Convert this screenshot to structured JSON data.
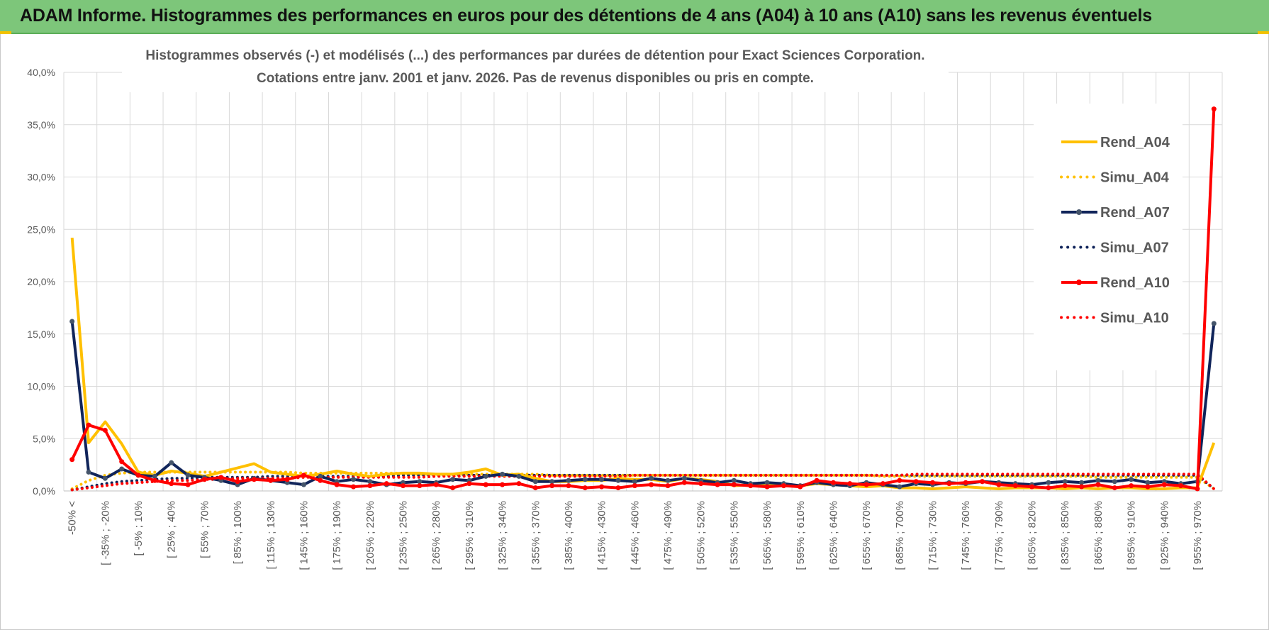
{
  "banner": {
    "title": "ADAM Informe. Histogrammes des performances en euros pour des détentions de 4 ans (A04) à 10 ans (A10) sans les revenus éventuels",
    "color": "#7dc67a"
  },
  "chart_data": {
    "type": "line",
    "title_line1": "Histogrammes observés (-) et modélisés (...) des performances par durées de détention pour Exact Sciences Corporation.",
    "title_line2": "Cotations entre janv. 2001 et janv. 2026. Pas de revenus disponibles ou pris en compte.",
    "xlabel": "",
    "ylabel": "",
    "ylim": [
      0,
      40
    ],
    "yticks": [
      "0,0%",
      "5,0%",
      "10,0%",
      "15,0%",
      "20,0%",
      "25,0%",
      "30,0%",
      "35,0%",
      "40,0%"
    ],
    "grid": true,
    "legend_position": "right",
    "x_tick_labels": [
      "-50% <",
      "[ -35% ; -20%",
      "[ -5% ; 10%",
      "[ 25% ; 40%",
      "[ 55% ; 70%",
      "[ 85% ; 100%",
      "[ 115% ; 130%",
      "[ 145% ; 160%",
      "[ 175% ; 190%",
      "[ 205% ; 220%",
      "[ 235% ; 250%",
      "[ 265% ; 280%",
      "[ 295% ; 310%",
      "[ 325% ; 340%",
      "[ 355% ; 370%",
      "[ 385% ; 400%",
      "[ 415% ; 430%",
      "[ 445% ; 460%",
      "[ 475% ; 490%",
      "[ 505% ; 520%",
      "[ 535% ; 550%",
      "[ 565% ; 580%",
      "[ 595% ; 610%",
      "[ 625% ; 640%",
      "[ 655% ; 670%",
      "[ 685% ; 700%",
      "[ 715% ; 730%",
      "[ 745% ; 760%",
      "[ 775% ; 790%",
      "[ 805% ; 820%",
      "[ 835% ; 850%",
      "[ 865% ; 880%",
      "[ 895% ; 910%",
      "[ 925% ; 940%",
      "[ 955% ; 970%"
    ],
    "n_points": 70,
    "series": [
      {
        "name": "Rend_A04",
        "style": "solid",
        "color": "#ffc000",
        "markers": false,
        "values": [
          24.2,
          4.6,
          6.6,
          4.5,
          1.8,
          1.5,
          1.9,
          1.7,
          1.4,
          1.8,
          2.2,
          2.6,
          1.8,
          1.6,
          1.4,
          1.6,
          1.9,
          1.6,
          1.4,
          1.6,
          1.7,
          1.7,
          1.6,
          1.6,
          1.8,
          2.1,
          1.5,
          1.6,
          1.2,
          0.9,
          0.9,
          1.0,
          1.0,
          1.2,
          1.1,
          1.1,
          0.9,
          1.2,
          1.1,
          0.9,
          0.5,
          0.6,
          0.7,
          0.6,
          0.5,
          0.7,
          0.6,
          0.5,
          0.4,
          0.5,
          0.3,
          0.3,
          0.2,
          0.3,
          0.4,
          0.3,
          0.2,
          0.3,
          0.3,
          0.3,
          0.2,
          0.3,
          0.2,
          0.3,
          0.3,
          0.2,
          0.2,
          0.3,
          0.3,
          4.6
        ]
      },
      {
        "name": "Simu_A04",
        "style": "dotted",
        "color": "#ffc000",
        "markers": false,
        "values": [
          0.2,
          1.0,
          1.5,
          1.7,
          1.8,
          1.8,
          1.8,
          1.8,
          1.8,
          1.8,
          1.8,
          1.8,
          1.8,
          1.8,
          1.7,
          1.7,
          1.7,
          1.7,
          1.7,
          1.7,
          1.7,
          1.6,
          1.6,
          1.6,
          1.6,
          1.6,
          1.6,
          1.6,
          1.6,
          1.5,
          1.5,
          1.5,
          1.5,
          1.5,
          1.5,
          1.5,
          1.5,
          1.5,
          1.5,
          1.5,
          1.5,
          1.5,
          1.5,
          1.5,
          1.5,
          1.5,
          1.5,
          1.5,
          1.5,
          1.4,
          1.4,
          1.4,
          1.4,
          1.4,
          1.4,
          1.4,
          1.4,
          1.4,
          1.4,
          1.4,
          1.4,
          1.4,
          1.3,
          1.3,
          1.3,
          1.3,
          1.3,
          1.3,
          1.3,
          0.2
        ]
      },
      {
        "name": "Rend_A07",
        "style": "solid",
        "color": "#10245a",
        "markers": true,
        "values": [
          16.2,
          1.8,
          1.2,
          2.1,
          1.5,
          1.4,
          2.7,
          1.5,
          1.3,
          1.0,
          0.6,
          1.2,
          1.0,
          0.8,
          0.6,
          1.4,
          0.9,
          1.1,
          0.9,
          0.6,
          0.8,
          0.9,
          0.8,
          1.1,
          1.0,
          1.4,
          1.6,
          1.4,
          0.9,
          0.9,
          1.0,
          1.1,
          1.1,
          1.0,
          0.9,
          1.2,
          1.0,
          1.2,
          1.0,
          0.8,
          1.0,
          0.7,
          0.8,
          0.7,
          0.5,
          0.8,
          0.6,
          0.5,
          0.8,
          0.6,
          0.4,
          0.7,
          0.6,
          0.8,
          0.7,
          0.9,
          0.8,
          0.7,
          0.6,
          0.8,
          0.9,
          0.8,
          1.0,
          0.9,
          1.1,
          0.8,
          0.9,
          0.7,
          0.9,
          16.0
        ]
      },
      {
        "name": "Simu_A07",
        "style": "dotted",
        "color": "#10245a",
        "markers": false,
        "values": [
          0.1,
          0.4,
          0.7,
          0.9,
          1.0,
          1.1,
          1.2,
          1.2,
          1.3,
          1.3,
          1.3,
          1.3,
          1.4,
          1.4,
          1.4,
          1.4,
          1.4,
          1.4,
          1.4,
          1.4,
          1.5,
          1.5,
          1.5,
          1.5,
          1.5,
          1.5,
          1.5,
          1.5,
          1.5,
          1.5,
          1.5,
          1.5,
          1.5,
          1.5,
          1.5,
          1.5,
          1.5,
          1.5,
          1.5,
          1.5,
          1.5,
          1.5,
          1.5,
          1.5,
          1.5,
          1.5,
          1.5,
          1.5,
          1.5,
          1.5,
          1.5,
          1.5,
          1.5,
          1.5,
          1.5,
          1.5,
          1.5,
          1.5,
          1.5,
          1.5,
          1.5,
          1.5,
          1.5,
          1.5,
          1.5,
          1.5,
          1.5,
          1.5,
          1.5,
          0.2
        ]
      },
      {
        "name": "Rend_A10",
        "style": "solid",
        "color": "#ff0000",
        "markers": true,
        "values": [
          3.0,
          6.3,
          5.8,
          2.8,
          1.5,
          1.0,
          0.7,
          0.6,
          1.1,
          1.3,
          0.9,
          1.1,
          1.0,
          1.1,
          1.5,
          1.0,
          0.6,
          0.4,
          0.5,
          0.7,
          0.5,
          0.5,
          0.6,
          0.3,
          0.7,
          0.6,
          0.6,
          0.7,
          0.3,
          0.5,
          0.5,
          0.3,
          0.4,
          0.3,
          0.5,
          0.6,
          0.5,
          0.8,
          0.7,
          0.6,
          0.6,
          0.5,
          0.4,
          0.5,
          0.4,
          1.0,
          0.8,
          0.7,
          0.6,
          0.7,
          1.0,
          0.9,
          0.8,
          0.7,
          0.8,
          0.9,
          0.6,
          0.5,
          0.4,
          0.3,
          0.5,
          0.4,
          0.6,
          0.3,
          0.5,
          0.4,
          0.6,
          0.5,
          0.2,
          36.5
        ]
      },
      {
        "name": "Simu_A10",
        "style": "dotted",
        "color": "#ff0000",
        "markers": false,
        "values": [
          0.1,
          0.3,
          0.5,
          0.7,
          0.8,
          0.9,
          1.0,
          1.0,
          1.1,
          1.1,
          1.2,
          1.2,
          1.2,
          1.2,
          1.3,
          1.3,
          1.3,
          1.3,
          1.3,
          1.3,
          1.3,
          1.3,
          1.4,
          1.4,
          1.4,
          1.4,
          1.4,
          1.4,
          1.4,
          1.4,
          1.4,
          1.4,
          1.4,
          1.4,
          1.5,
          1.5,
          1.5,
          1.5,
          1.5,
          1.5,
          1.5,
          1.5,
          1.5,
          1.5,
          1.5,
          1.5,
          1.5,
          1.5,
          1.5,
          1.5,
          1.5,
          1.6,
          1.6,
          1.6,
          1.6,
          1.6,
          1.6,
          1.6,
          1.6,
          1.6,
          1.6,
          1.6,
          1.6,
          1.6,
          1.6,
          1.6,
          1.6,
          1.6,
          1.6,
          0.2
        ]
      }
    ]
  }
}
